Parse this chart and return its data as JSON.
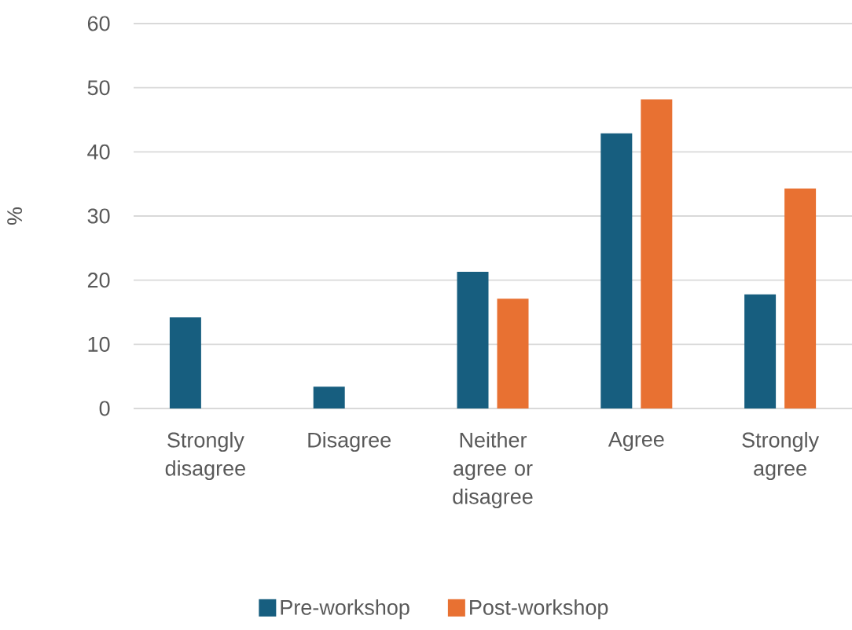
{
  "chart_data": {
    "type": "bar",
    "ylabel": "%",
    "categories": [
      "Strongly disagree",
      "Disagree",
      "Neither agree or disagree",
      "Agree",
      "Strongly agree"
    ],
    "series": [
      {
        "name": "Pre-workshop",
        "color": "#175e7f",
        "values": [
          14.2,
          3.4,
          21.3,
          42.9,
          17.8
        ]
      },
      {
        "name": "Post-workshop",
        "color": "#e87132",
        "values": [
          0,
          0,
          17.1,
          48.2,
          34.3
        ]
      }
    ],
    "ylim": [
      0,
      60
    ],
    "yticks": [
      0,
      10,
      20,
      30,
      40,
      50,
      60
    ],
    "grid": "y",
    "legend": "bottom"
  }
}
